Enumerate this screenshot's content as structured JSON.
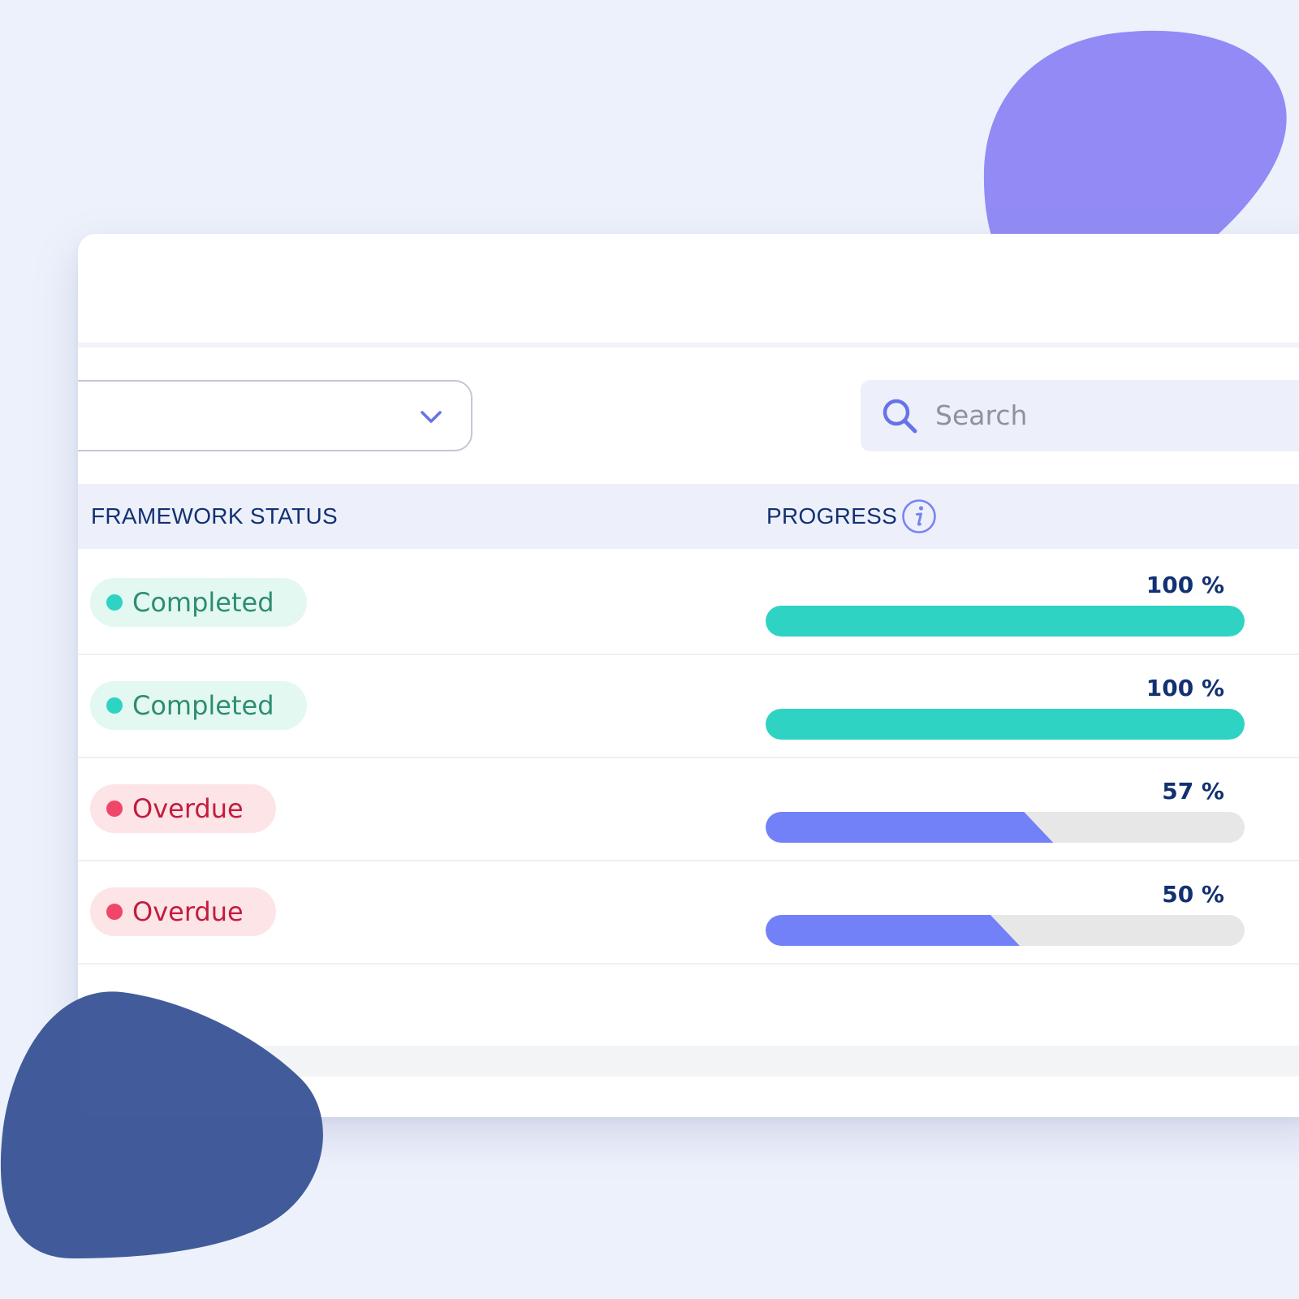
{
  "colors": {
    "page_background": "#edf1fb",
    "accent_purple": "#928bf5",
    "accent_navy": "#3f5797",
    "header_text": "#123172",
    "completed_bar": "#2ed3c4",
    "in_progress_bar": "#7281f7",
    "track": "#e7e7e8"
  },
  "filter": {
    "icon": "chevron-down-icon"
  },
  "search": {
    "placeholder": "Search",
    "icon": "search-icon"
  },
  "table": {
    "headers": {
      "status": "FRAMEWORK STATUS",
      "progress": "PROGRESS",
      "progress_icon": "info-icon"
    },
    "rows": [
      {
        "status": "Completed",
        "status_type": "completed",
        "progress": 100,
        "progress_label": "100 %"
      },
      {
        "status": "Completed",
        "status_type": "completed",
        "progress": 100,
        "progress_label": "100 %"
      },
      {
        "status": "Overdue",
        "status_type": "overdue",
        "progress": 57,
        "progress_label": "57 %"
      },
      {
        "status": "Overdue",
        "status_type": "overdue",
        "progress": 50,
        "progress_label": "50 %"
      }
    ]
  }
}
